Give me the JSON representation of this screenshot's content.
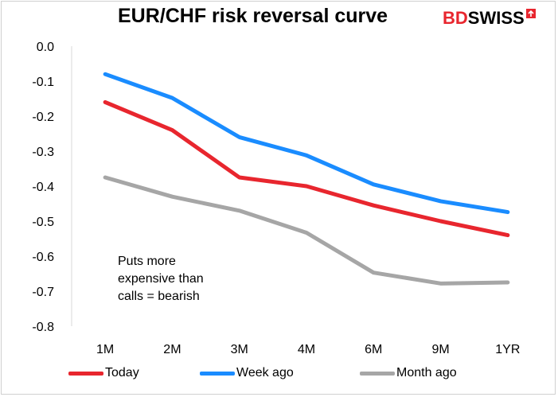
{
  "chart_data": {
    "type": "line",
    "title": "EUR/CHF risk reversal curve",
    "categories": [
      "1M",
      "2M",
      "3M",
      "4M",
      "6M",
      "9M",
      "1YR"
    ],
    "ylim": [
      -0.8,
      0.0
    ],
    "yticks": [
      0.0,
      -0.1,
      -0.2,
      -0.3,
      -0.4,
      -0.5,
      -0.6,
      -0.7,
      -0.8
    ],
    "ytick_labels": [
      "0.0",
      "-0.1",
      "-0.2",
      "-0.3",
      "-0.4",
      "-0.5",
      "-0.6",
      "-0.7",
      "-0.8"
    ],
    "grid": false,
    "legend_position": "bottom",
    "series": [
      {
        "name": "Today",
        "color": "#e8262e",
        "values": [
          -0.16,
          -0.24,
          -0.375,
          -0.4,
          -0.455,
          -0.5,
          -0.54
        ]
      },
      {
        "name": "Week ago",
        "color": "#1a8cff",
        "values": [
          -0.08,
          -0.148,
          -0.26,
          -0.312,
          -0.395,
          -0.443,
          -0.474
        ]
      },
      {
        "name": "Month ago",
        "color": "#a6a6a6",
        "values": [
          -0.375,
          -0.43,
          -0.47,
          -0.533,
          -0.647,
          -0.678,
          -0.675
        ]
      }
    ],
    "annotation": [
      "Puts more",
      "expensive than",
      "calls = bearish"
    ]
  },
  "brand": {
    "bd": "BD",
    "swiss": "SWISS"
  }
}
